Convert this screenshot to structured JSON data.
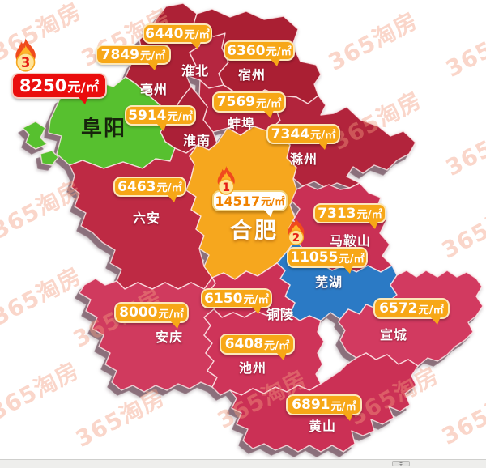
{
  "unit": "元/㎡",
  "watermark": {
    "text": "365淘房",
    "color": "#f29e80"
  },
  "bubble_colors": {
    "yellow": "#f7a717",
    "red": "#ea0d0d",
    "white": "#ffffff",
    "white_text": "#f08200"
  },
  "cities": [
    {
      "id": "bozhou",
      "name": "亳州",
      "price": "7849",
      "bubble_style": "yellow",
      "region_color": "#ad2136",
      "rank": ""
    },
    {
      "id": "huaibei",
      "name": "淮北",
      "price": "6440",
      "bubble_style": "yellow",
      "region_color": "#b52640",
      "rank": ""
    },
    {
      "id": "suzhou",
      "name": "宿州",
      "price": "6360",
      "bubble_style": "yellow",
      "region_color": "#aa1f33",
      "rank": ""
    },
    {
      "id": "bengbu",
      "name": "蚌埠",
      "price": "7569",
      "bubble_style": "yellow",
      "region_color": "#b7253f",
      "rank": ""
    },
    {
      "id": "huainan",
      "name": "淮南",
      "price": "5914",
      "bubble_style": "yellow",
      "region_color": "#ab2037",
      "rank": ""
    },
    {
      "id": "chuzhou",
      "name": "滁州",
      "price": "7344",
      "bubble_style": "yellow",
      "region_color": "#b2243c",
      "rank": ""
    },
    {
      "id": "fuyang",
      "name": "阜阳",
      "price": "8250",
      "bubble_style": "red",
      "region_color": "#57c02f",
      "rank": "3"
    },
    {
      "id": "luan",
      "name": "六安",
      "price": "6463",
      "bubble_style": "yellow",
      "region_color": "#be2a44",
      "rank": ""
    },
    {
      "id": "hefei",
      "name": "合肥",
      "price": "14517",
      "bubble_style": "white",
      "region_color": "#f6a71e",
      "rank": "1"
    },
    {
      "id": "maanshan",
      "name": "马鞍山",
      "price": "7313",
      "bubble_style": "yellow",
      "region_color": "#c93055",
      "rank": ""
    },
    {
      "id": "wuhu",
      "name": "芜湖",
      "price": "11055",
      "bubble_style": "yellow",
      "region_color": "#2b7ac5",
      "rank": "2"
    },
    {
      "id": "tongling",
      "name": "铜陵",
      "price": "6150",
      "bubble_style": "yellow",
      "region_color": "#cc3156",
      "rank": ""
    },
    {
      "id": "xuancheng",
      "name": "宣城",
      "price": "6572",
      "bubble_style": "yellow",
      "region_color": "#d23a60",
      "rank": ""
    },
    {
      "id": "anqing",
      "name": "安庆",
      "price": "8000",
      "bubble_style": "yellow",
      "region_color": "#d03a5e",
      "rank": ""
    },
    {
      "id": "chizhou",
      "name": "池州",
      "price": "6408",
      "bubble_style": "yellow",
      "region_color": "#ce3459",
      "rank": ""
    },
    {
      "id": "huangshan",
      "name": "黄山",
      "price": "6891",
      "bubble_style": "yellow",
      "region_color": "#cb3055",
      "rank": ""
    }
  ]
}
